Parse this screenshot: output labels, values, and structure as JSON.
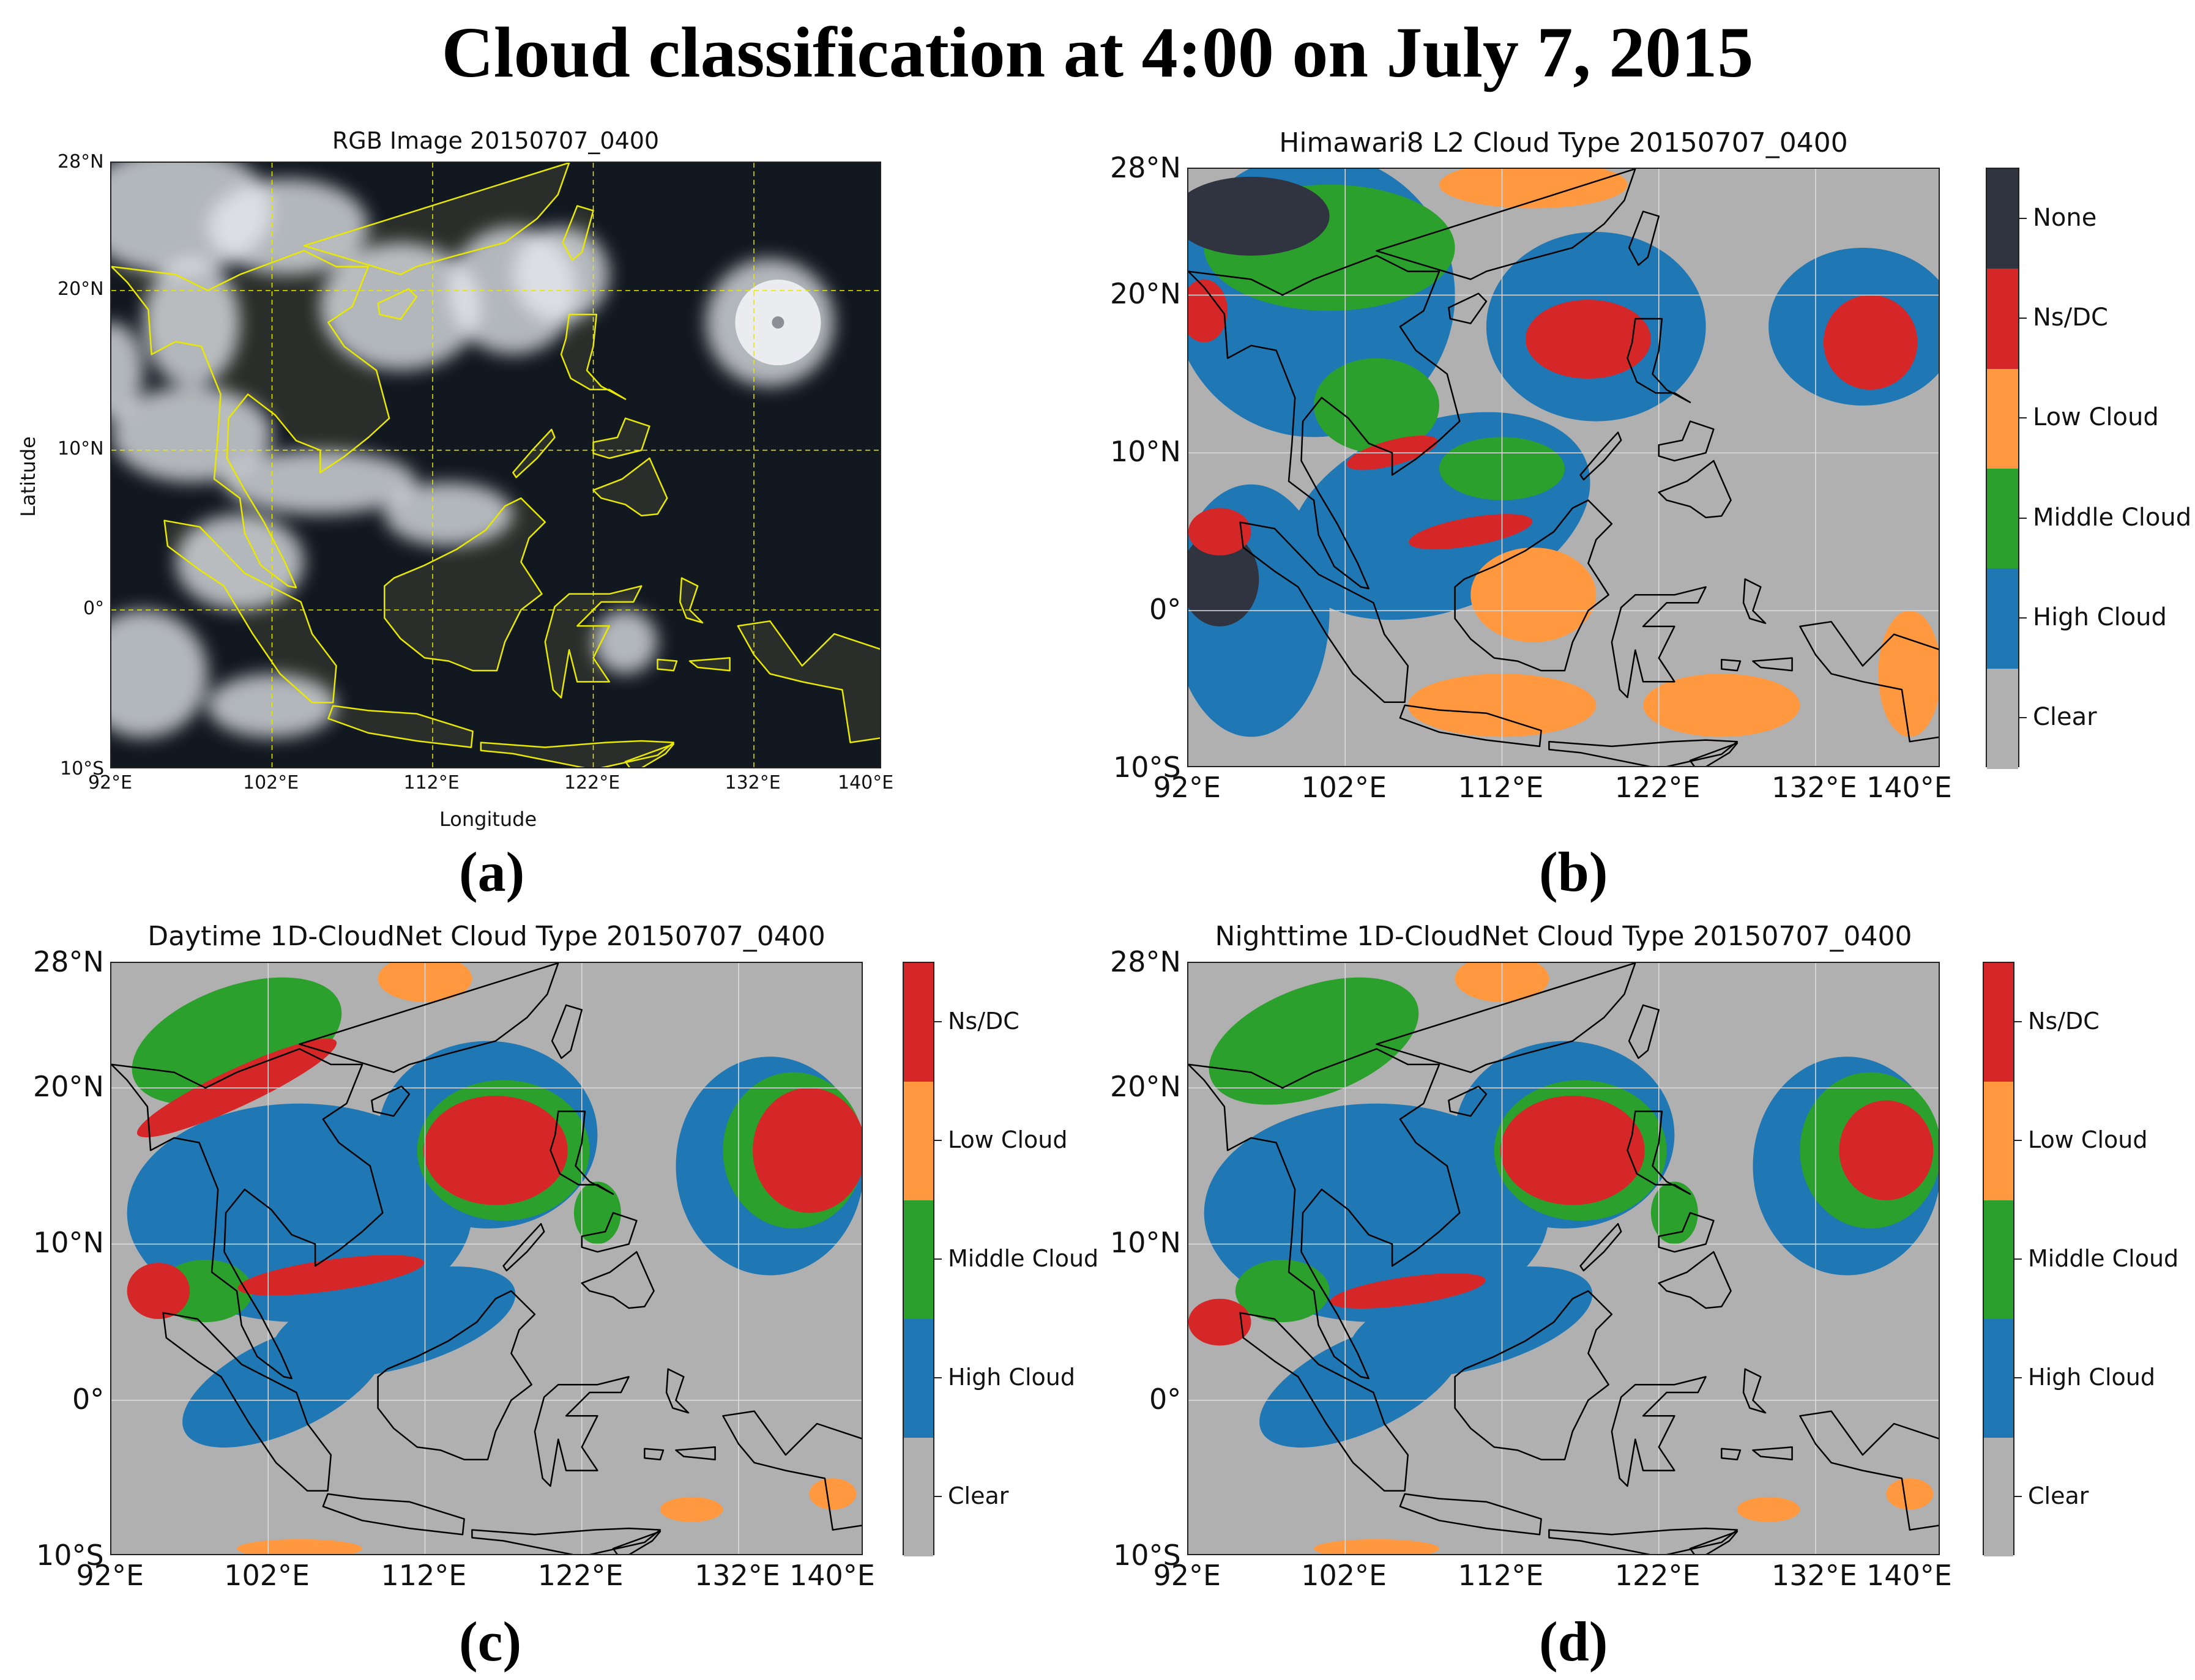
{
  "title": "Cloud classification at 4:00 on July 7, 2015",
  "colors": {
    "none": "#2f3440",
    "ns_dc": "#d62728",
    "low": "#ff983e",
    "middle": "#2ca02c",
    "high": "#1f77b4",
    "clear": "#b0b0b0",
    "coast_a": "#e8e800",
    "coast_bcd": "#000000"
  },
  "lon_ticks": [
    "92°E",
    "102°E",
    "112°E",
    "122°E",
    "132°E",
    "140°E"
  ],
  "lat_ticks": [
    "28°N",
    "20°N",
    "10°N",
    "0°",
    "10°S"
  ],
  "panels": {
    "a": {
      "title": "RGB Image 20150707_0400",
      "letter": "(a)",
      "xlabel": "Longitude",
      "ylabel": "Latitude"
    },
    "b": {
      "title": "Himawari8 L2 Cloud Type 20150707_0400",
      "letter": "(b)",
      "legend": [
        "None",
        "Ns/DC",
        "Low Cloud",
        "Middle Cloud",
        "High Cloud",
        "Clear"
      ]
    },
    "c": {
      "title": "Daytime 1D-CloudNet Cloud Type 20150707_0400",
      "letter": "(c)",
      "legend": [
        "Ns/DC",
        "Low Cloud",
        "Middle Cloud",
        "High Cloud",
        "Clear"
      ]
    },
    "d": {
      "title": "Nighttime 1D-CloudNet Cloud Type 20150707_0400",
      "letter": "(d)",
      "legend": [
        "Ns/DC",
        "Low Cloud",
        "Middle Cloud",
        "High Cloud",
        "Clear"
      ]
    }
  }
}
